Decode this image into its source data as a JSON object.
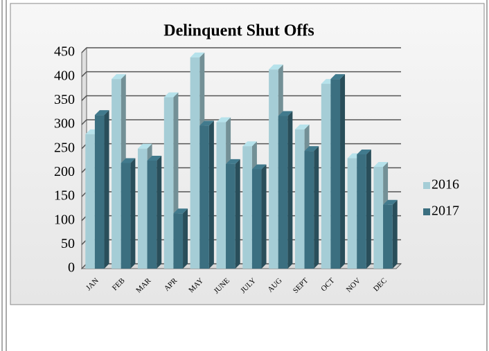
{
  "chart_data": {
    "type": "bar",
    "title": "Delinquent Shut Offs",
    "categories": [
      "JAN",
      "FEB",
      "MAR",
      "APR",
      "MAY",
      "JUNE",
      "JULY",
      "AUG",
      "SEPT",
      "OCT",
      "NOV",
      "DEC"
    ],
    "series": [
      {
        "name": "2016",
        "color": "#a5cdd6",
        "values": [
          280,
          395,
          250,
          357,
          440,
          305,
          255,
          415,
          290,
          385,
          230,
          212
        ]
      },
      {
        "name": "2017",
        "color": "#3b6f80",
        "values": [
          320,
          220,
          225,
          115,
          298,
          218,
          207,
          318,
          245,
          395,
          238,
          133
        ]
      }
    ],
    "ylim": [
      0,
      450
    ],
    "yticks": [
      0,
      50,
      100,
      150,
      200,
      250,
      300,
      350,
      400,
      450
    ],
    "grid": true,
    "legend": "right"
  }
}
